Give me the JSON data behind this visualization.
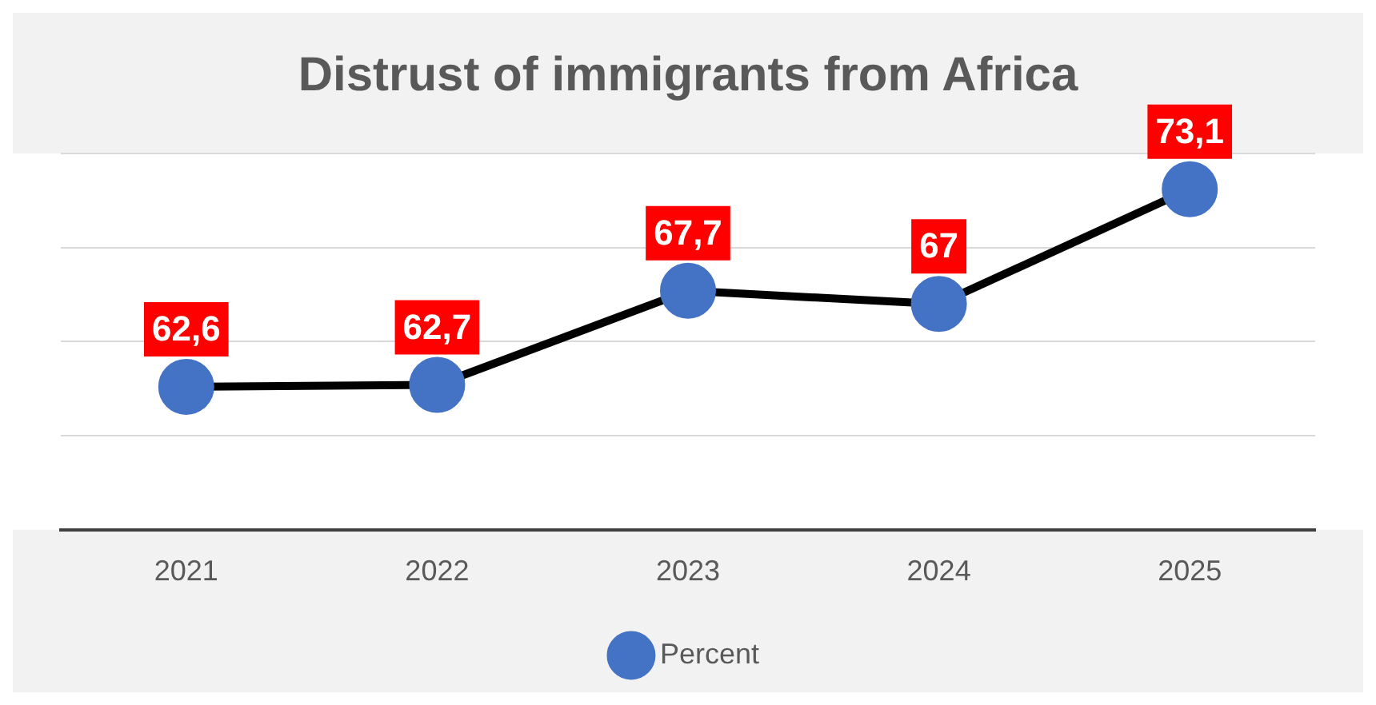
{
  "chart_data": {
    "type": "line",
    "title": "Distrust of immigrants from Africa",
    "categories": [
      "2021",
      "2022",
      "2023",
      "2024",
      "2025"
    ],
    "series": [
      {
        "name": "Percent",
        "color": "#000000",
        "values": [
          62.6,
          62.7,
          67.7,
          67,
          73.1
        ],
        "value_labels": [
          "62,6",
          "62,7",
          "67,7",
          "67",
          "73,1"
        ]
      }
    ],
    "ylim": [
      55,
      75
    ],
    "yticks": [
      {
        "value": 55,
        "label": null
      },
      {
        "value": 60,
        "label": null
      },
      {
        "value": 65,
        "label": null
      },
      {
        "value": 70,
        "label": null
      },
      {
        "value": 75,
        "label": null
      }
    ],
    "tick_labels": "x",
    "grid": "y",
    "legend": "bottom",
    "marker": "circle",
    "line_style": "solid"
  }
}
